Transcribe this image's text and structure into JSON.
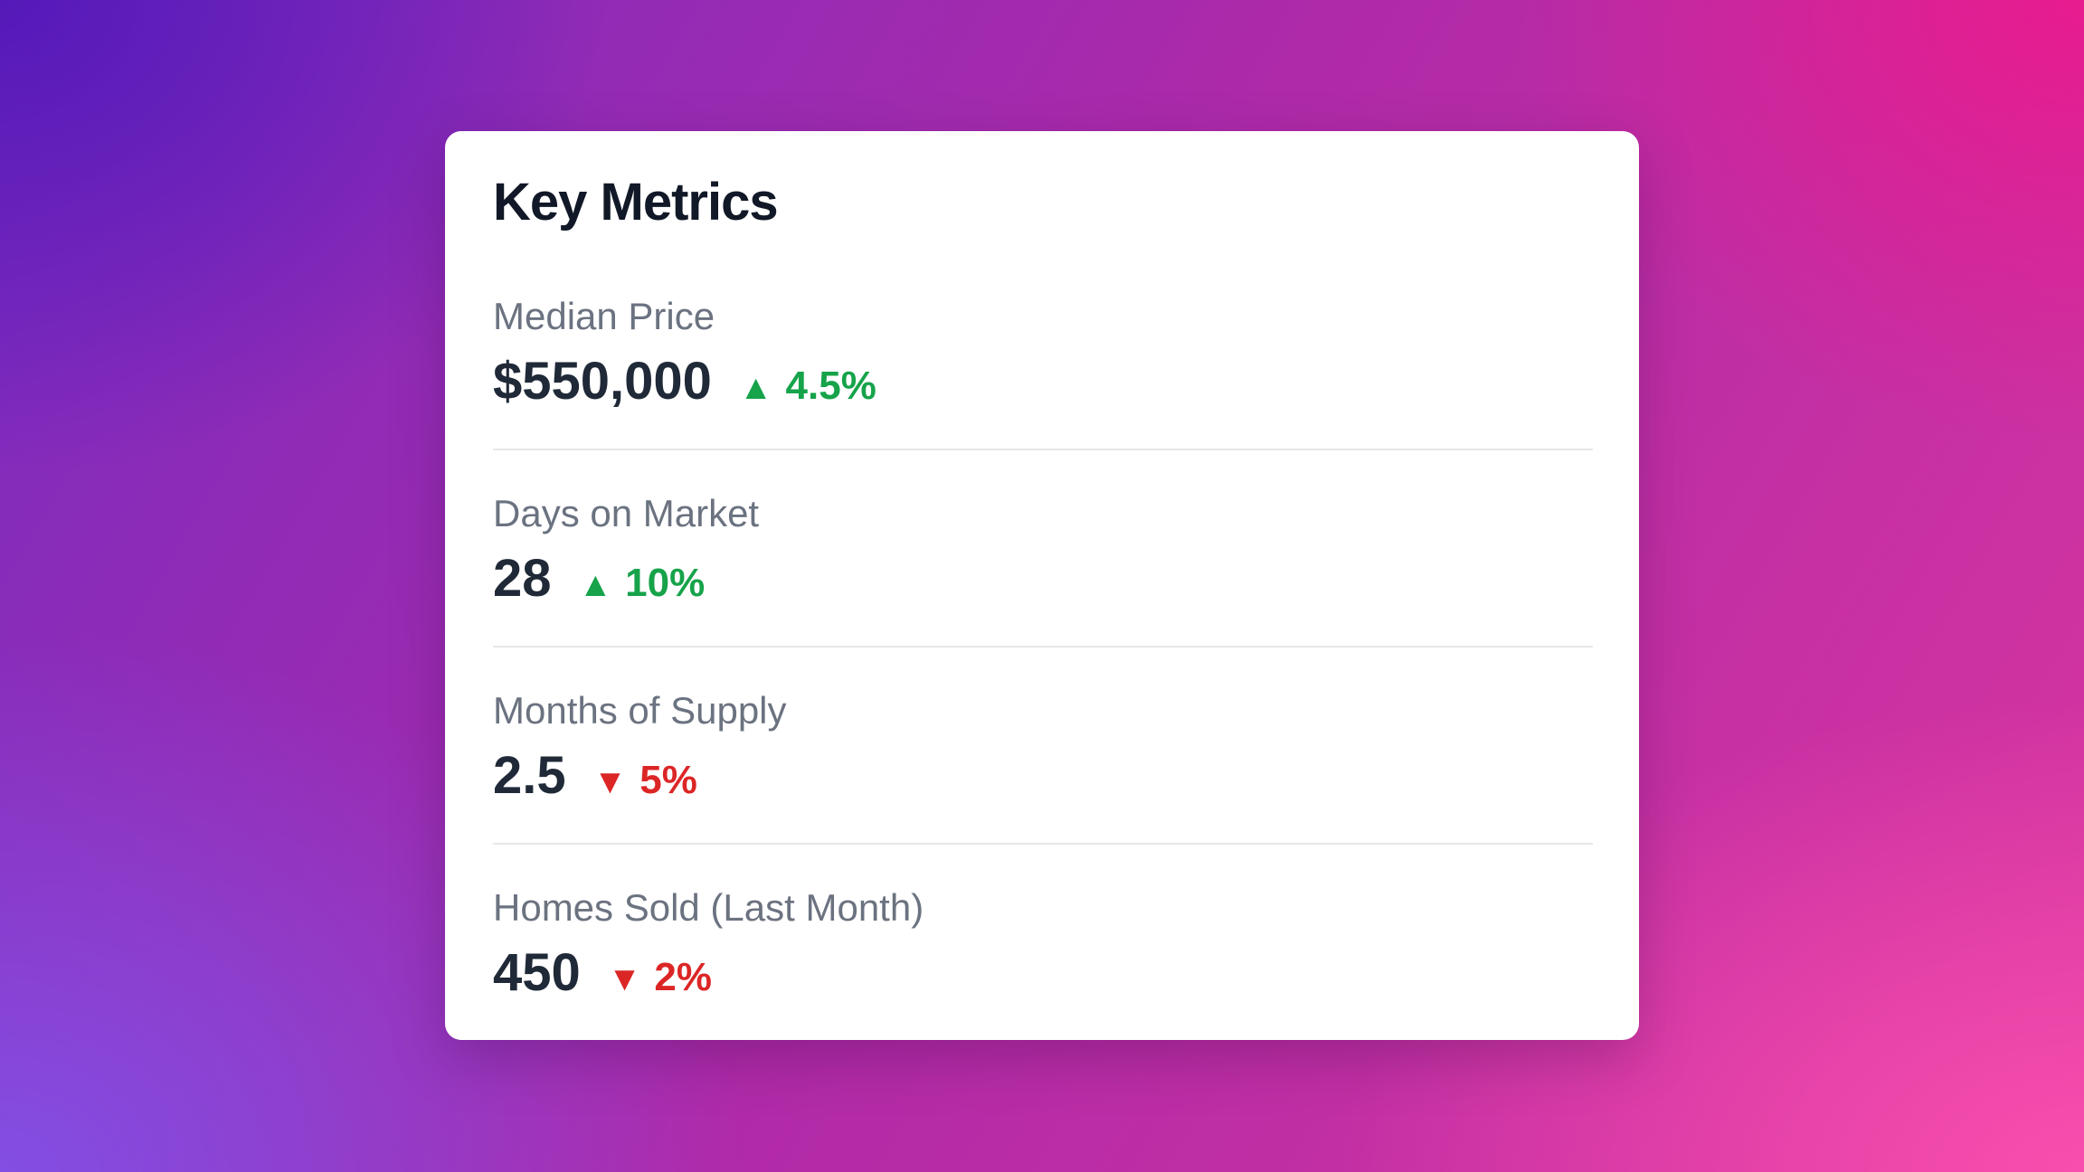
{
  "card": {
    "title": "Key Metrics",
    "metrics": [
      {
        "label": "Median Price",
        "value": "$550,000",
        "change": "4.5%",
        "direction": "up",
        "arrow": "▲"
      },
      {
        "label": "Days on Market",
        "value": "28",
        "change": "10%",
        "direction": "up",
        "arrow": "▲"
      },
      {
        "label": "Months of Supply",
        "value": "2.5",
        "change": "5%",
        "direction": "down",
        "arrow": "▼"
      },
      {
        "label": "Homes Sold (Last Month)",
        "value": "450",
        "change": "2%",
        "direction": "down",
        "arrow": "▼"
      }
    ]
  },
  "colors": {
    "up": "#16a34a",
    "down": "#dc2626",
    "title": "#111827",
    "label": "#6b7280"
  }
}
